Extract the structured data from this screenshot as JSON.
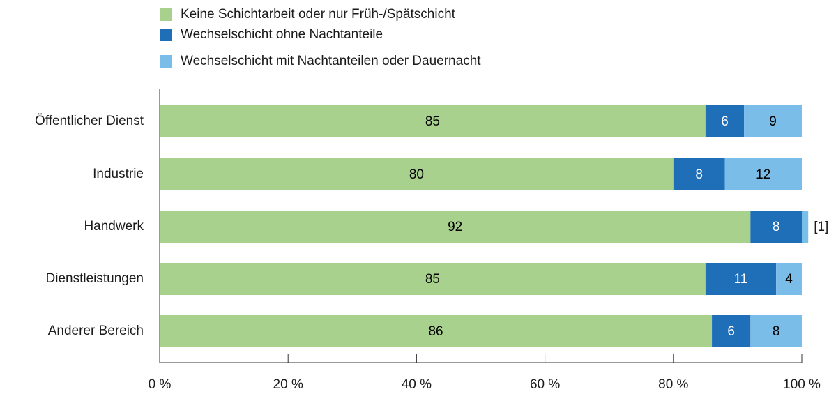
{
  "chart_data": {
    "type": "stacked_barh",
    "categories": [
      "Öffentlicher Dienst",
      "Industrie",
      "Handwerk",
      "Dienstleistungen",
      "Anderer Bereich"
    ],
    "series": [
      {
        "name": "Keine Schichtarbeit oder nur Früh-/Spätschicht",
        "color": "#a9d18e",
        "label_color": "#000000",
        "values": [
          85,
          80,
          92,
          85,
          86
        ]
      },
      {
        "name": "Wechselschicht ohne Nachtanteile",
        "color": "#1f6fb8",
        "label_color": "#ffffff",
        "values": [
          6,
          8,
          8,
          11,
          6
        ]
      },
      {
        "name": "Wechselschicht mit Nachtanteilen oder Dauernacht",
        "color": "#7abde8",
        "label_color": "#000000",
        "values": [
          9,
          12,
          1,
          4,
          8
        ],
        "value_labels": [
          "9",
          "12",
          "[1]",
          "4",
          "8"
        ]
      }
    ],
    "xlim": [
      0,
      100
    ],
    "xticks": [
      {
        "value": 0,
        "label": "0 %"
      },
      {
        "value": 20,
        "label": "20 %"
      },
      {
        "value": 40,
        "label": "40 %"
      },
      {
        "value": 60,
        "label": "60 %"
      },
      {
        "value": 80,
        "label": "80 %"
      },
      {
        "value": 100,
        "label": "100 %"
      }
    ],
    "legend": "top-left"
  }
}
